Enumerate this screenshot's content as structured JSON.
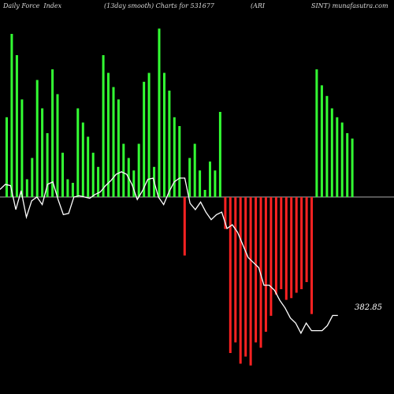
{
  "title": {
    "part1": "Daily Force  Index",
    "part2": "(13day smooth) Charts for 531677",
    "part3": "(ARI",
    "part4": "SINT) munafasutra.com"
  },
  "chart_data": {
    "type": "bar",
    "bars": [
      0.45,
      0.92,
      0.8,
      0.55,
      0.1,
      0.22,
      0.66,
      0.5,
      0.36,
      0.72,
      0.58,
      0.25,
      0.1,
      0.08,
      0.5,
      0.42,
      0.34,
      0.25,
      0.17,
      0.8,
      0.7,
      0.62,
      0.55,
      0.3,
      0.22,
      0.15,
      0.3,
      0.65,
      0.7,
      0.17,
      0.95,
      0.7,
      0.6,
      0.45,
      0.4,
      -0.33,
      0.22,
      0.3,
      0.15,
      0.04,
      0.2,
      0.15,
      0.48,
      -0.18,
      -0.88,
      -0.82,
      -0.94,
      -0.9,
      -0.95,
      -0.82,
      -0.85,
      -0.76,
      -0.67,
      -0.55,
      -0.52,
      -0.58,
      -0.57,
      -0.54,
      -0.52,
      -0.48,
      -0.66,
      0.72,
      0.63,
      0.57,
      0.5,
      0.45,
      0.42,
      0.36,
      0.33
    ],
    "line": [
      0.06,
      0.1,
      0.09,
      -0.1,
      0.05,
      -0.16,
      -0.03,
      0.0,
      -0.06,
      0.1,
      0.12,
      -0.02,
      -0.14,
      -0.13,
      0.0,
      0.01,
      0.0,
      -0.01,
      0.02,
      0.04,
      0.09,
      0.13,
      0.18,
      0.2,
      0.18,
      0.1,
      -0.02,
      0.05,
      0.14,
      0.15,
      0.0,
      -0.06,
      0.04,
      0.12,
      0.15,
      0.15,
      -0.05,
      -0.1,
      -0.04,
      -0.12,
      -0.18,
      -0.14,
      -0.12,
      -0.25,
      -0.22,
      -0.28,
      -0.38,
      -0.48,
      -0.52,
      -0.56,
      -0.7,
      -0.7,
      -0.74,
      -0.82,
      -0.88,
      -0.96,
      -1.0,
      -1.08,
      -1.0,
      -1.06,
      -1.06,
      -1.06,
      -1.02,
      -0.94,
      -0.94
    ],
    "last_value_label": "382.85",
    "colors": {
      "positive": "#33ff33",
      "negative": "#ff2222",
      "line": "#ffffff",
      "zero_line": "#aaaaaa",
      "background": "#000000"
    }
  }
}
